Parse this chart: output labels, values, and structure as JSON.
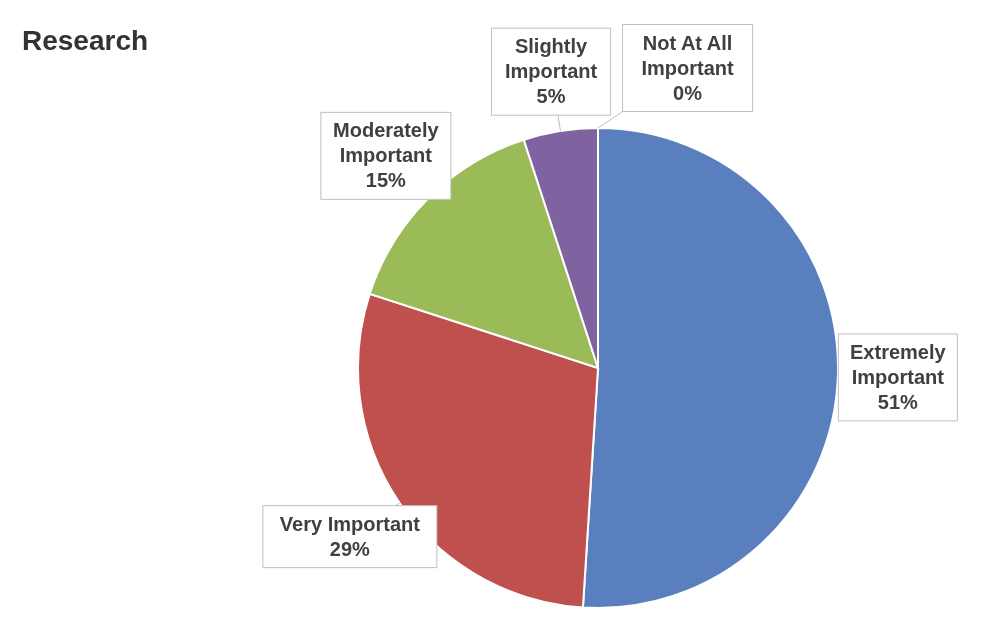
{
  "chart_data": {
    "type": "pie",
    "title": "Research",
    "categories": [
      "Extremely Important",
      "Very Important",
      "Moderately Important",
      "Slightly Important",
      "Not At All Important"
    ],
    "values": [
      51,
      29,
      15,
      5,
      0
    ],
    "value_labels": [
      "51%",
      "29%",
      "15%",
      "5%",
      "0%"
    ],
    "colors": [
      "#5a7fbf",
      "#bf504d",
      "#9bbb59",
      "#7f63a1",
      "#4bacc6"
    ]
  }
}
